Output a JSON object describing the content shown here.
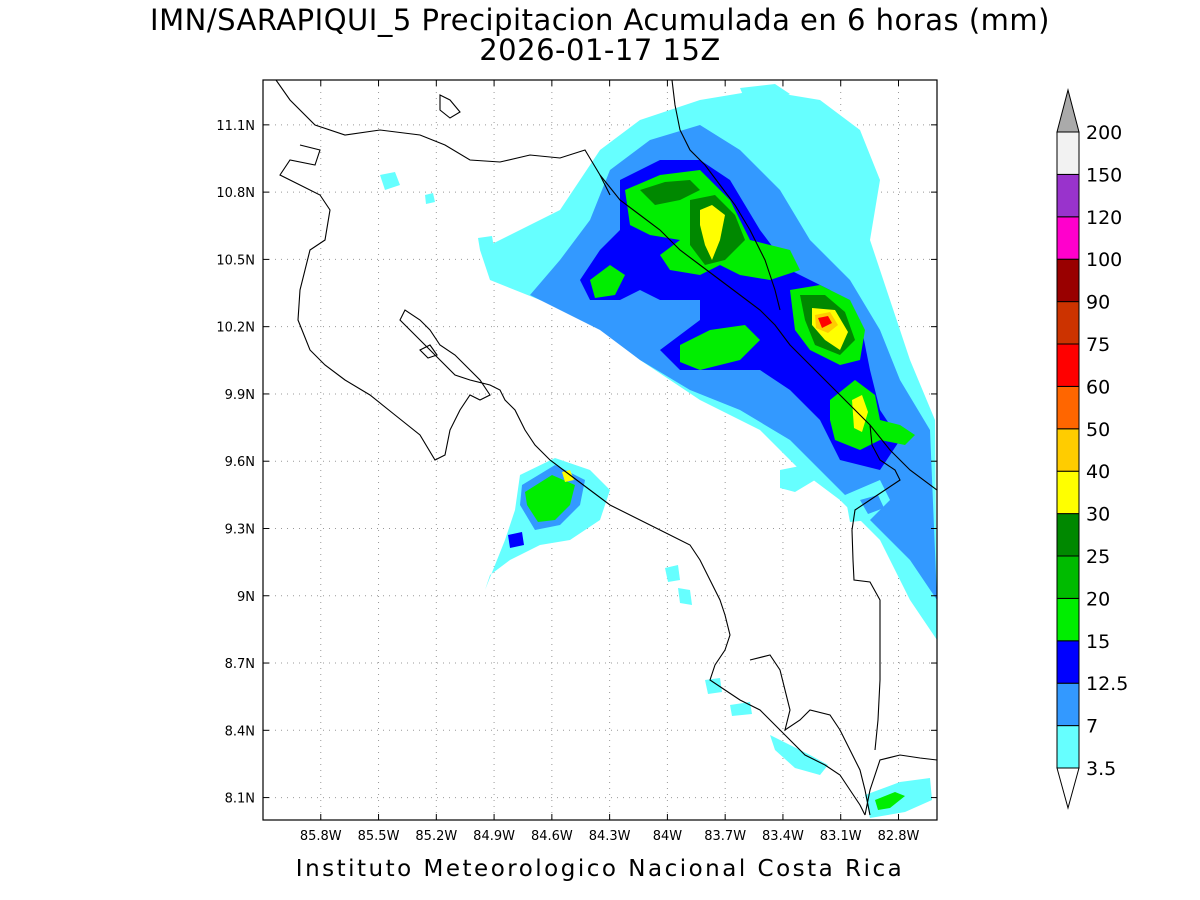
{
  "title": {
    "line1": "IMN/SARAPIQUI_5 Precipitacion Acumulada en 6 horas (mm)",
    "line2": "2026-01-17 15Z"
  },
  "map": {
    "lon_range": [
      -86.1,
      -82.6
    ],
    "lat_range": [
      8.0,
      11.3
    ],
    "x_ticks": [
      "85.8W",
      "85.5W",
      "85.2W",
      "84.9W",
      "84.6W",
      "84.3W",
      "84W",
      "83.7W",
      "83.4W",
      "83.1W",
      "82.8W"
    ],
    "x_tick_values": [
      -85.8,
      -85.5,
      -85.2,
      -84.9,
      -84.6,
      -84.3,
      -84.0,
      -83.7,
      -83.4,
      -83.1,
      -82.8
    ],
    "y_ticks": [
      "11.1N",
      "10.8N",
      "10.5N",
      "10.2N",
      "9.9N",
      "9.6N",
      "9.3N",
      "9N",
      "8.7N",
      "8.4N",
      "8.1N"
    ],
    "y_tick_values": [
      11.1,
      10.8,
      10.5,
      10.2,
      9.9,
      9.6,
      9.3,
      9.0,
      8.7,
      8.4,
      8.1
    ],
    "grid": "dotted"
  },
  "colorbar": {
    "labels": [
      "3.5",
      "7",
      "12.5",
      "15",
      "20",
      "25",
      "30",
      "40",
      "50",
      "60",
      "75",
      "90",
      "100",
      "120",
      "150",
      "200"
    ],
    "colors": [
      "#66ffff",
      "#3399ff",
      "#0000ff",
      "#00ee00",
      "#00bb00",
      "#008800",
      "#ffff00",
      "#ffcc00",
      "#ff6600",
      "#ff0000",
      "#cc3300",
      "#990000",
      "#ff00cc",
      "#9933cc",
      "#f2f2f2",
      "#aaaaaa"
    ]
  },
  "footer": "Instituto Meteorologico Nacional Costa Rica"
}
